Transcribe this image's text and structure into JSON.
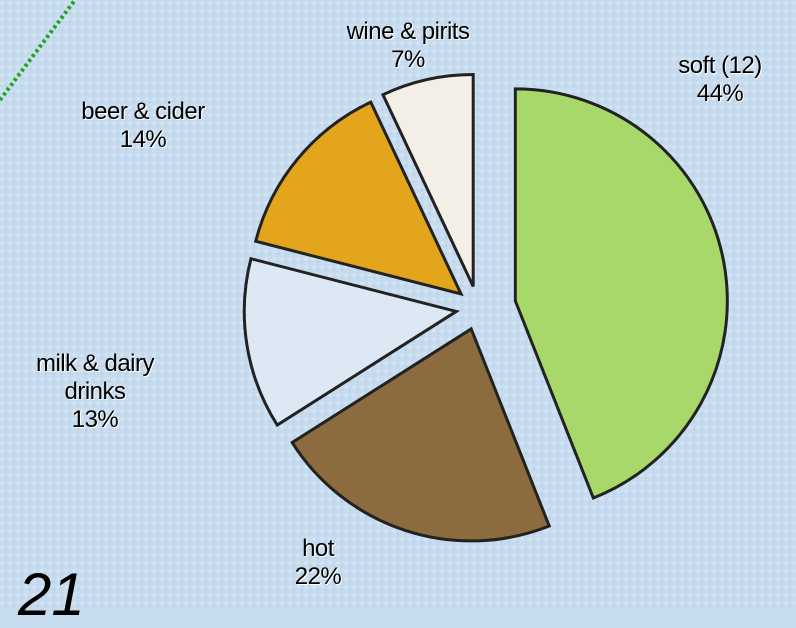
{
  "chart_data": {
    "type": "pie",
    "categories": [
      "soft (12)",
      "hot",
      "milk & dairy drinks",
      "beer & cider",
      "wine & pirits"
    ],
    "values": [
      44,
      22,
      13,
      14,
      7
    ],
    "value_labels": [
      "44%",
      "22%",
      "13%",
      "14%",
      "7%"
    ],
    "colors": [
      "#a8d86a",
      "#8c6b3e",
      "#dce8f3",
      "#e2a51c",
      "#f3eee6"
    ]
  },
  "page_number": "21"
}
